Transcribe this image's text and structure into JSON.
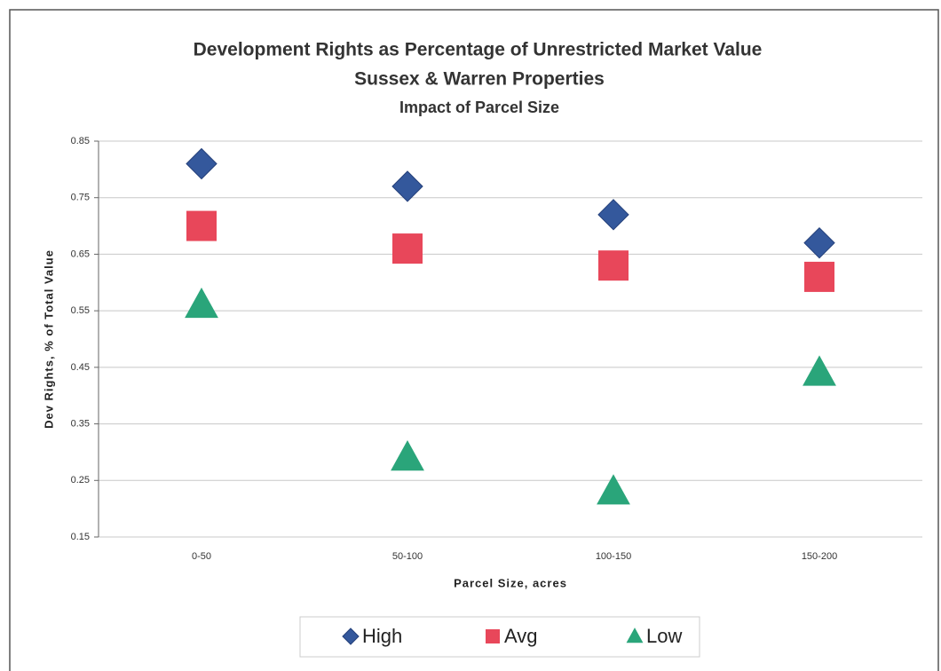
{
  "chart_data": {
    "type": "scatter",
    "title": "Development Rights as Percentage of Unrestricted Market Value",
    "subtitle": [
      "Sussex & Warren Properties",
      "Impact of Parcel Size"
    ],
    "x_label": "Parcel Size, acres",
    "y_label": "Dev Rights, % of Total Value",
    "categories": [
      "0-50",
      "50-100",
      "100-150",
      "150-200"
    ],
    "series": [
      {
        "name": "High",
        "color": "#34589c",
        "marker": "diamond",
        "values": [
          0.81,
          0.77,
          0.72,
          0.67
        ]
      },
      {
        "name": "Avg",
        "color": "#e8475a",
        "marker": "square",
        "values": [
          0.7,
          0.66,
          0.63,
          0.61
        ]
      },
      {
        "name": "Low",
        "color": "#2aa57a",
        "marker": "triangle",
        "values": [
          0.56,
          0.29,
          0.23,
          0.44
        ]
      }
    ],
    "ylim": [
      0.15,
      0.85
    ],
    "yticks": [
      0.15,
      0.25,
      0.35,
      0.45,
      0.55,
      0.65,
      0.75,
      0.85
    ],
    "grid": true,
    "legend": "bottom"
  }
}
